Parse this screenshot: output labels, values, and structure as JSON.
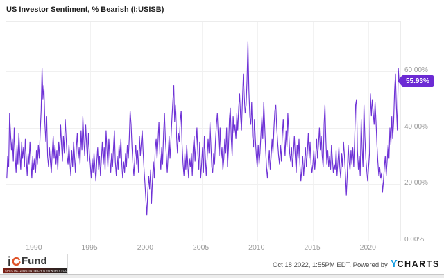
{
  "header": {
    "title": "US Investor Sentiment, % Bearish (I:USISB)"
  },
  "colors": {
    "line": "#6e32d6",
    "badge_bg": "#6c2bd4",
    "badge_text": "#ffffff",
    "axis_text": "#9b9b9b",
    "grid": "#f0f0f0",
    "brand_blue": "#129be0",
    "logo_orange": "#e0542a"
  },
  "chart_data": {
    "type": "line",
    "title": "US Investor Sentiment, % Bearish (I:USISB)",
    "series_name": "US Investor Sentiment, % Bearish",
    "symbol": "I:USISB",
    "x_min": 1987.45,
    "x_max": 2022.85,
    "ylim": [
      0,
      77.3
    ],
    "grid": true,
    "legend_position": "none",
    "y_axis_side": "right",
    "start_year": 1987.5,
    "points_per_year": 12,
    "x_ticks": [
      {
        "value": 1990,
        "label": "1990"
      },
      {
        "value": 1995,
        "label": "1995"
      },
      {
        "value": 2000,
        "label": "2000"
      },
      {
        "value": 2005,
        "label": "2005"
      },
      {
        "value": 2010,
        "label": "2010"
      },
      {
        "value": 2015,
        "label": "2015"
      },
      {
        "value": 2020,
        "label": "2020"
      }
    ],
    "y_ticks": [
      {
        "value": 0,
        "label": "0.00%"
      },
      {
        "value": 20,
        "label": "20.00%"
      },
      {
        "value": 40,
        "label": "40.00%"
      },
      {
        "value": 60,
        "label": "60.00%"
      }
    ],
    "last_value": 55.93,
    "last_value_label": "55.93%",
    "values": [
      22,
      30,
      26,
      45,
      38,
      32,
      36,
      28,
      40,
      30,
      24,
      34,
      27,
      38,
      31,
      25,
      35,
      29,
      33,
      26,
      36,
      29,
      23,
      31,
      27,
      35,
      28,
      22,
      30,
      25,
      29,
      24,
      32,
      27,
      34,
      29,
      38,
      46,
      61,
      50,
      55,
      42,
      35,
      44,
      30,
      26,
      33,
      28,
      24,
      31,
      37,
      29,
      34,
      27,
      32,
      25,
      35,
      30,
      41,
      34,
      28,
      37,
      31,
      43,
      36,
      30,
      27,
      34,
      28,
      23,
      32,
      26,
      35,
      30,
      24,
      33,
      38,
      29,
      33,
      27,
      39,
      32,
      44,
      36,
      30,
      41,
      34,
      28,
      38,
      31,
      27,
      22,
      29,
      24,
      31,
      26,
      21,
      28,
      33,
      25,
      30,
      23,
      29,
      35,
      27,
      33,
      25,
      39,
      32,
      26,
      36,
      30,
      24,
      31,
      26,
      33,
      39,
      28,
      23,
      30,
      25,
      34,
      29,
      36,
      27,
      22,
      28,
      24,
      31,
      26,
      34,
      29,
      36,
      46,
      41,
      33,
      27,
      23,
      29,
      34,
      27,
      32,
      24,
      37,
      30,
      35,
      39,
      31,
      25,
      20,
      14,
      9,
      17,
      23,
      18,
      25,
      13,
      21,
      28,
      22,
      32,
      36,
      29,
      35,
      42,
      31,
      25,
      33,
      27,
      38,
      45,
      36,
      30,
      24,
      31,
      37,
      29,
      36,
      43,
      49,
      55,
      42,
      48,
      37,
      31,
      38,
      35,
      42,
      46,
      34,
      27,
      23,
      31,
      25,
      34,
      28,
      22,
      29,
      26,
      31,
      23,
      33,
      37,
      28,
      34,
      40,
      31,
      25,
      35,
      22,
      27,
      33,
      24,
      37,
      30,
      23,
      29,
      36,
      31,
      42,
      34,
      26,
      24,
      31,
      27,
      35,
      41,
      45,
      37,
      30,
      40,
      29,
      33,
      25,
      29,
      36,
      31,
      40,
      26,
      33,
      43,
      47,
      36,
      30,
      44,
      38,
      41,
      36,
      45,
      39,
      47,
      52,
      44,
      39,
      49,
      59,
      51,
      45,
      48,
      57,
      70.3,
      53,
      44,
      41,
      49,
      37,
      33,
      43,
      36,
      30,
      26,
      34,
      27,
      31,
      38,
      44,
      36,
      49,
      41,
      32,
      26,
      22,
      27,
      32,
      25,
      30,
      36,
      31,
      40,
      46,
      48,
      40,
      35,
      30,
      27,
      34,
      28,
      37,
      43,
      36,
      30,
      39,
      33,
      45,
      38,
      31,
      28,
      33,
      26,
      31,
      37,
      30,
      24,
      34,
      29,
      36,
      27,
      21,
      25,
      30,
      23,
      28,
      33,
      26,
      31,
      38,
      29,
      35,
      27,
      24,
      27,
      32,
      25,
      30,
      36,
      29,
      34,
      40,
      32,
      37,
      30,
      26,
      41,
      48,
      35,
      27,
      32,
      26,
      30,
      25,
      34,
      29,
      24,
      27,
      25,
      32,
      23,
      28,
      33,
      26,
      22,
      31,
      26,
      35,
      30,
      24,
      16,
      23,
      34,
      28,
      25,
      32,
      27,
      33,
      26,
      36,
      48,
      50,
      32,
      25,
      30,
      23,
      43,
      33,
      26,
      48,
      37,
      29,
      25,
      21,
      26,
      31,
      52,
      44,
      50,
      45,
      41,
      49,
      42,
      34,
      28,
      23,
      26,
      22,
      24,
      17,
      21,
      26,
      30,
      23,
      28,
      34,
      29,
      40,
      34,
      44,
      36,
      42,
      53,
      59,
      47,
      39,
      61,
      55.93
    ]
  },
  "footer": {
    "logo": {
      "i": "i",
      "name": "Fund",
      "tagline": "SPECIALIZING IN TECH GROWTH STOCKS"
    },
    "attribution": {
      "timestamp_powered": "Oct 18 2022, 1:55PM EDT. Powered by",
      "brand_first": "Y",
      "brand_rest": "CHARTS"
    }
  }
}
